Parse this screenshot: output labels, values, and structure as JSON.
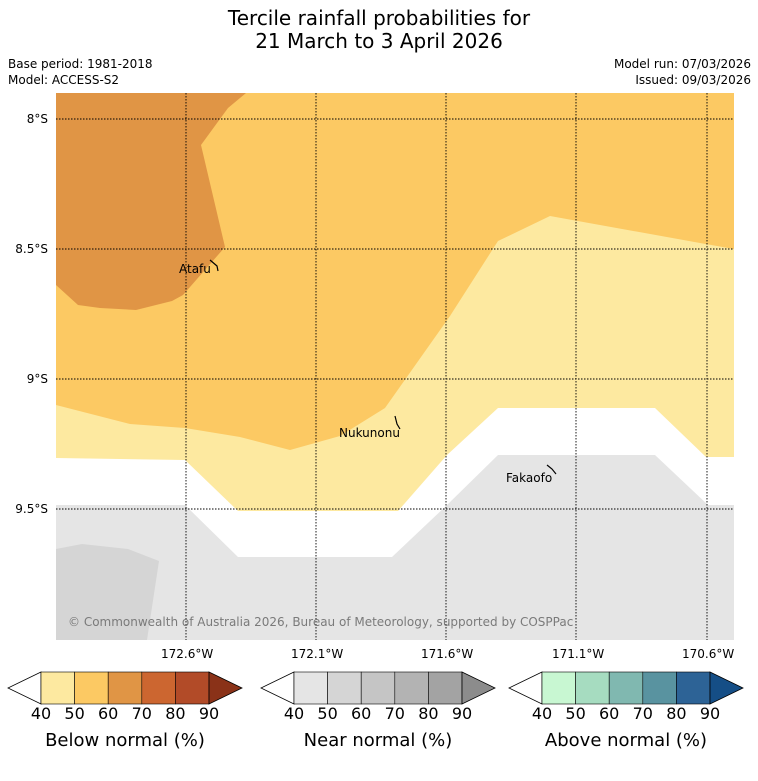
{
  "title": {
    "line1": "Tercile rainfall probabilities for",
    "line2": "21 March to 3 April 2026"
  },
  "meta": {
    "base_period": "Base period: 1981-2018",
    "model": "Model: ACCESS-S2",
    "model_run": "Model run: 07/03/2026",
    "issued": "Issued: 09/03/2026"
  },
  "map": {
    "latitude_labels": [
      "8°S",
      "8.5°S",
      "9°S",
      "9.5°S"
    ],
    "longitude_labels": [
      "172.6°W",
      "172.1°W",
      "171.6°W",
      "171.1°W",
      "170.6°W"
    ],
    "places": [
      "Atafu",
      "Nukunonu",
      "Fakaofo"
    ],
    "copyright": "© Commonwealth of Australia 2026, Bureau of Meteorology, supported by COSPPac"
  },
  "colorbars": [
    {
      "title": "Below normal (%)",
      "ticks": [
        "40",
        "50",
        "60",
        "70",
        "80",
        "90"
      ],
      "colors": [
        "#fde9a0",
        "#fcc963",
        "#e09545",
        "#cc6630",
        "#b24b28",
        "#8a3218"
      ]
    },
    {
      "title": "Near normal (%)",
      "ticks": [
        "40",
        "50",
        "60",
        "70",
        "80",
        "90"
      ],
      "colors": [
        "#e5e5e5",
        "#d5d5d5",
        "#c5c5c5",
        "#b3b3b3",
        "#a3a3a3",
        "#8c8c8c"
      ]
    },
    {
      "title": "Above normal (%)",
      "ticks": [
        "40",
        "50",
        "60",
        "70",
        "80",
        "90"
      ],
      "colors": [
        "#c8f7d2",
        "#a6dcc0",
        "#80b8b0",
        "#5993a0",
        "#2d6396",
        "#154e86"
      ]
    }
  ]
}
